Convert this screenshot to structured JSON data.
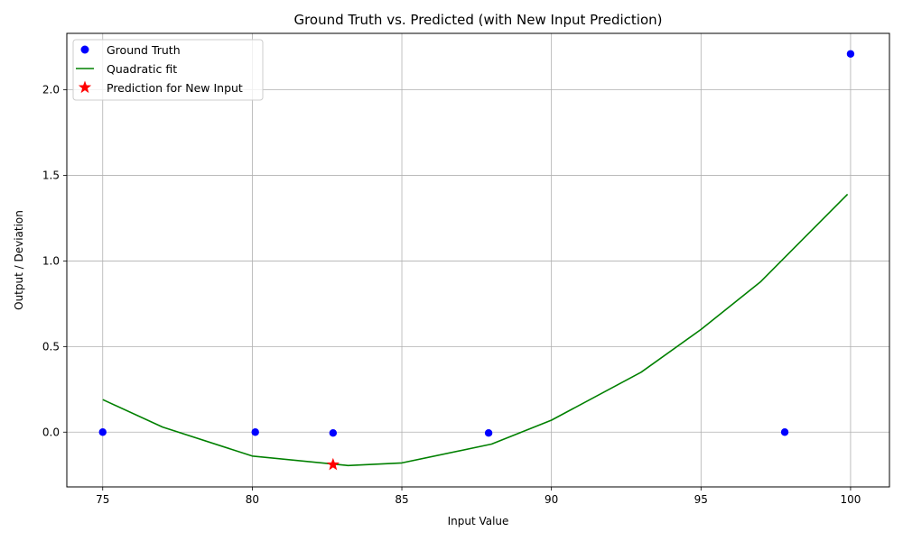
{
  "chart_data": {
    "type": "scatter",
    "title": "Ground Truth vs. Predicted (with New Input Prediction)",
    "xlabel": "Input Value",
    "ylabel": "Output / Deviation",
    "xlim": [
      73.8,
      101.3
    ],
    "ylim": [
      -0.32,
      2.33
    ],
    "grid": true,
    "legend_position": "top-left",
    "x_ticks": [
      75,
      80,
      85,
      90,
      95,
      100
    ],
    "y_ticks": [
      0.0,
      0.5,
      1.0,
      1.5,
      2.0
    ],
    "x_tick_labels": [
      "75",
      "80",
      "85",
      "90",
      "95",
      "100"
    ],
    "y_tick_labels": [
      "0.0",
      "0.5",
      "1.0",
      "1.5",
      "2.0"
    ],
    "series": [
      {
        "name": "Ground Truth",
        "kind": "scatter",
        "color": "#0000ff",
        "points": [
          {
            "x": 75.0,
            "y": 0.0
          },
          {
            "x": 80.1,
            "y": 0.0
          },
          {
            "x": 82.7,
            "y": -0.005
          },
          {
            "x": 87.9,
            "y": -0.005
          },
          {
            "x": 97.8,
            "y": 0.0
          },
          {
            "x": 100.0,
            "y": 2.21
          }
        ]
      },
      {
        "name": "Quadratic fit",
        "kind": "line",
        "color": "#008000",
        "points": [
          {
            "x": 75.0,
            "y": 0.19
          },
          {
            "x": 77.0,
            "y": 0.03
          },
          {
            "x": 80.0,
            "y": -0.14
          },
          {
            "x": 83.2,
            "y": -0.195
          },
          {
            "x": 85.0,
            "y": -0.18
          },
          {
            "x": 88.0,
            "y": -0.07
          },
          {
            "x": 90.0,
            "y": 0.07
          },
          {
            "x": 93.0,
            "y": 0.35
          },
          {
            "x": 95.0,
            "y": 0.6
          },
          {
            "x": 97.0,
            "y": 0.88
          },
          {
            "x": 99.9,
            "y": 1.39
          }
        ]
      },
      {
        "name": "Prediction for New Input",
        "kind": "star",
        "color": "#ff0000",
        "points": [
          {
            "x": 82.7,
            "y": -0.19
          }
        ]
      }
    ]
  }
}
